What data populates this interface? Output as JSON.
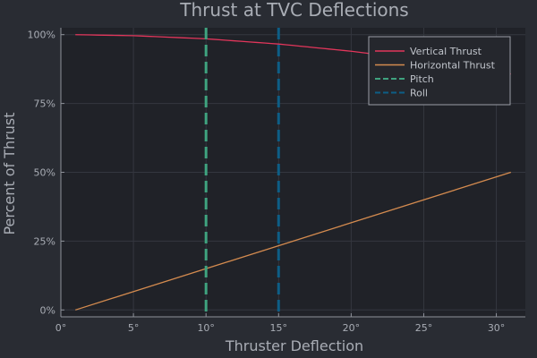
{
  "chart_data": {
    "type": "line",
    "title": "Thrust at TVC Deflections",
    "xlabel": "Thruster Deflection",
    "ylabel": "Percent of Thrust",
    "xlim": [
      0,
      32
    ],
    "ylim": [
      -0.025,
      1.025
    ],
    "x_ticks": [
      0,
      5,
      10,
      15,
      20,
      25,
      30
    ],
    "x_tick_labels": [
      "0°",
      "5°",
      "10°",
      "15°",
      "20°",
      "25°",
      "30°"
    ],
    "y_ticks": [
      0,
      0.25,
      0.5,
      0.75,
      1.0
    ],
    "y_tick_labels": [
      "0%",
      "25%",
      "50%",
      "75%",
      "100%"
    ],
    "grid": true,
    "legend_position": "top-right",
    "series": [
      {
        "name": "Vertical Thrust",
        "color": "#e2365b",
        "style": "solid",
        "x": [
          1,
          5,
          10,
          15,
          20,
          25,
          31
        ],
        "y": [
          0.9998,
          0.9962,
          0.9848,
          0.9659,
          0.9397,
          0.9063,
          0.8572
        ]
      },
      {
        "name": "Horizontal Thrust",
        "color": "#d48b4f",
        "style": "solid",
        "x": [
          1,
          31
        ],
        "y": [
          0.0,
          0.5
        ]
      },
      {
        "name": "Pitch",
        "color": "#3fa37f",
        "style": "dashed",
        "vline_x": 10
      },
      {
        "name": "Roll",
        "color": "#0d5e86",
        "style": "dashed",
        "vline_x": 15
      }
    ]
  }
}
